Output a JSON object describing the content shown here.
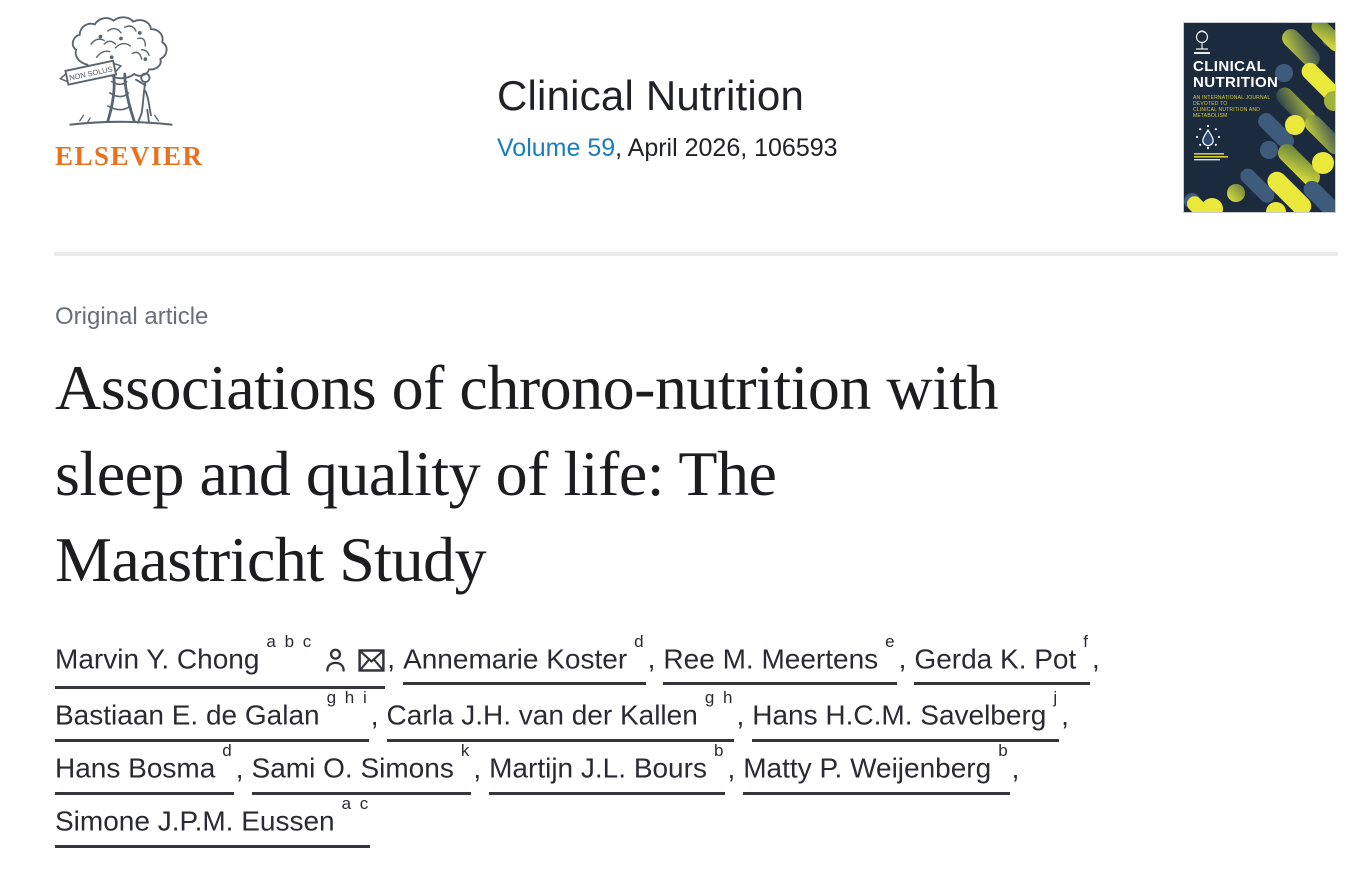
{
  "publisher": {
    "name": "ELSEVIER",
    "banner_text": "NON SOLUS"
  },
  "journal": {
    "title": "Clinical Nutrition",
    "volume_link": "Volume 59",
    "issue_suffix": ", April 2026, 106593"
  },
  "cover": {
    "title_line1": "CLINICAL",
    "title_line2": "NUTRITION",
    "subtitle_line1": "AN INTERNATIONAL JOURNAL DEVOTED TO",
    "subtitle_line2": "CLINICAL NUTRITION AND METABOLISM"
  },
  "article": {
    "category": "Original article",
    "title": "Associations of chrono-nutrition with sleep and quality of life: The Maastricht Study",
    "title_lines": [
      "Associations of chrono-nutrition with",
      "sleep and quality of life: The",
      "Maastricht Study"
    ]
  },
  "authors": {
    "separator": ", ",
    "lines": [
      [
        {
          "name": "Marvin Y. Chong",
          "sups": "a b c",
          "icons": [
            "person",
            "envelope"
          ]
        },
        {
          "name": "Annemarie Koster",
          "sups": "d"
        },
        {
          "name": "Ree M. Meertens",
          "sups": "e"
        },
        {
          "name": "Gerda K. Pot",
          "sups": "f"
        }
      ],
      [
        {
          "name": "Bastiaan E. de Galan",
          "sups": "g h i"
        },
        {
          "name": "Carla J.H. van der Kallen",
          "sups": "g h"
        },
        {
          "name": "Hans H.C.M. Savelberg",
          "sups": "j"
        }
      ],
      [
        {
          "name": "Hans Bosma",
          "sups": "d"
        },
        {
          "name": "Sami O. Simons",
          "sups": "k"
        },
        {
          "name": "Martijn J.L. Bours",
          "sups": "b"
        },
        {
          "name": "Matty P. Weijenberg",
          "sups": "b"
        }
      ],
      [
        {
          "name": "Simone J.P.M. Eussen",
          "sups": "a c"
        }
      ]
    ]
  },
  "icons": {
    "author_profile": "person-outline",
    "email": "envelope-cross"
  },
  "colors": {
    "link_blue": "#1a7dbf",
    "elsevier_orange": "#e9711c",
    "category_gray": "#696f79",
    "title_black": "#1d1d20",
    "cover_navy": "#1c2a3e",
    "capsule_yellow": "#e9e83b",
    "capsule_blue": "#3f5b7c",
    "capsule_olive": "#aab837"
  }
}
